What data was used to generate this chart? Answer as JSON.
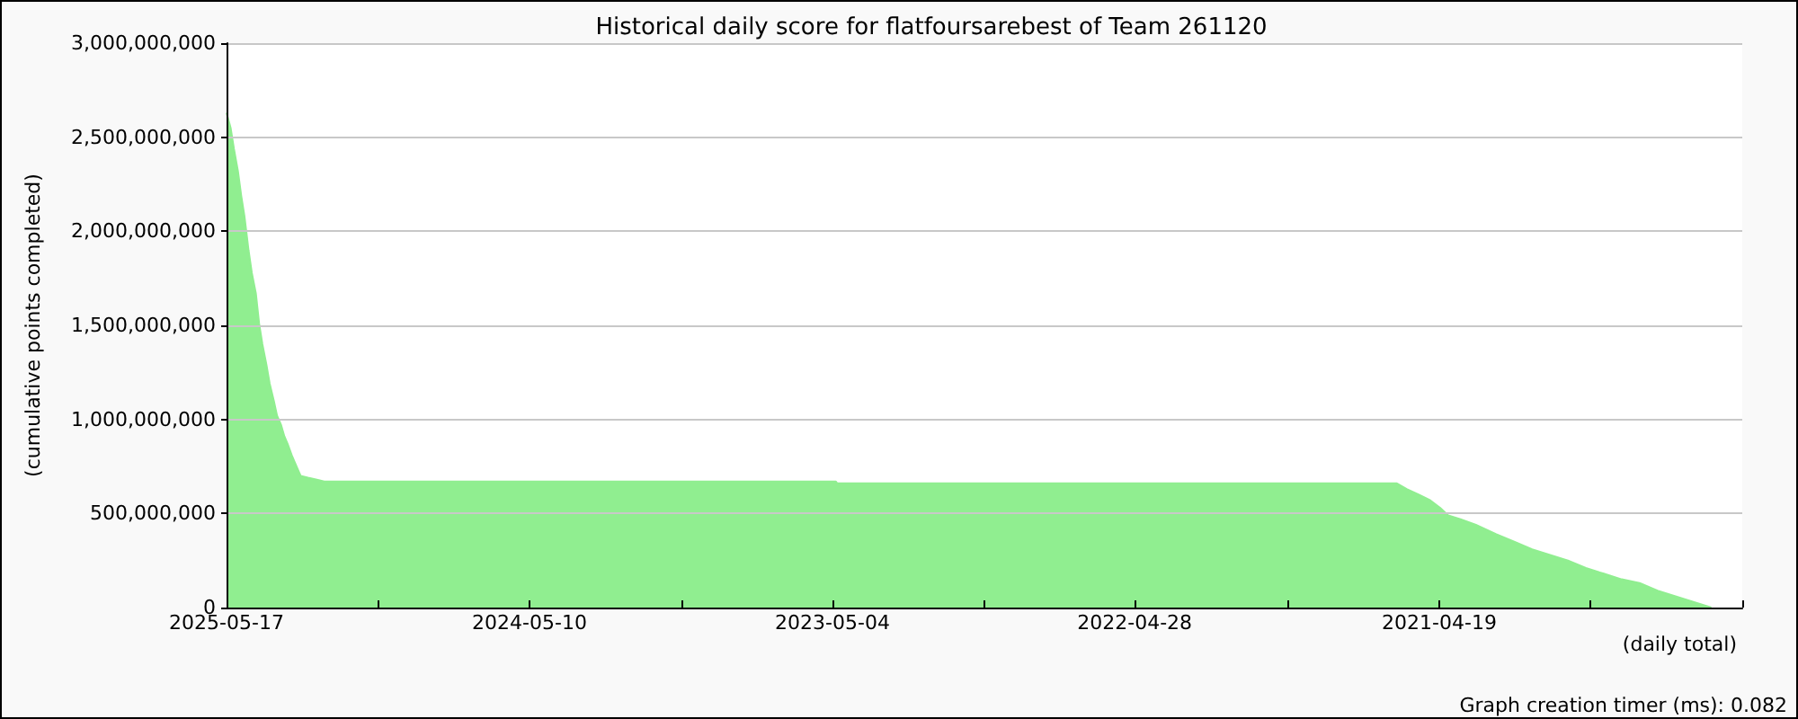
{
  "chart_data": {
    "type": "area",
    "title": "Historical daily score for flatfoursarebest of Team 261120",
    "xlabel": "(daily total)",
    "ylabel": "(cumulative points completed)",
    "annotations": [
      "Graph creation timer (ms): 0.082"
    ],
    "x": [
      "2025-05-17",
      "2025-05-12",
      "2025-05-08",
      "2025-05-03",
      "2025-04-29",
      "2025-04-25",
      "2025-04-20",
      "2025-04-16",
      "2025-04-11",
      "2025-04-07",
      "2025-04-03",
      "2025-03-29",
      "2025-03-25",
      "2025-03-20",
      "2025-03-16",
      "2025-03-11",
      "2025-03-07",
      "2025-03-03",
      "2025-02-26",
      "2025-02-22",
      "2025-02-17",
      "2025-02-15",
      "2025-02-06",
      "2025-01-26",
      "2025-01-17",
      "2023-04-30",
      "2023-04-28",
      "2021-06-10",
      "2021-05-29",
      "2021-05-14",
      "2021-04-30",
      "2021-04-18",
      "2021-04-08",
      "2021-03-24",
      "2021-03-05",
      "2021-02-08",
      "2021-01-17",
      "2020-12-26",
      "2020-12-04",
      "2020-11-12",
      "2020-10-21",
      "2020-09-29",
      "2020-09-07",
      "2020-08-16",
      "2020-07-25",
      "2020-07-03",
      "2020-06-11",
      "2020-05-20"
    ],
    "values": [
      2630000000,
      2550000000,
      2440000000,
      2320000000,
      2190000000,
      2080000000,
      1900000000,
      1780000000,
      1670000000,
      1510000000,
      1400000000,
      1290000000,
      1190000000,
      1100000000,
      1020000000,
      970000000,
      910000000,
      870000000,
      810000000,
      770000000,
      720000000,
      700000000,
      690000000,
      680000000,
      670000000,
      670000000,
      660000000,
      660000000,
      630000000,
      600000000,
      570000000,
      530000000,
      490000000,
      470000000,
      440000000,
      390000000,
      350000000,
      310000000,
      280000000,
      250000000,
      210000000,
      180000000,
      150000000,
      130000000,
      90000000,
      60000000,
      30000000,
      0
    ],
    "color": "#90ee90",
    "xlim": [
      "2025-05-17",
      "2020-04-12"
    ],
    "xticks": [
      "2025-05-17",
      {
        "value": "2024-11-12",
        "label": null
      },
      "2024-05-10",
      {
        "value": "2023-11-06",
        "label": null
      },
      "2023-05-04",
      {
        "value": "2022-10-30",
        "label": null
      },
      "2022-04-28",
      {
        "value": "2021-10-22",
        "label": null
      },
      "2021-04-19",
      {
        "value": "2020-10-15",
        "label": null
      },
      {
        "value": "2020-04-12",
        "label": null
      }
    ],
    "ylim": [
      0,
      3000000000
    ],
    "yticks": [
      0,
      {
        "value": 500000000,
        "label": "500,000,000"
      },
      {
        "value": 1000000000,
        "label": "1,000,000,000"
      },
      {
        "value": 1500000000,
        "label": "1,500,000,000"
      },
      {
        "value": 2000000000,
        "label": "2,000,000,000"
      },
      {
        "value": 2500000000,
        "label": "2,500,000,000"
      },
      {
        "value": 3000000000,
        "label": "3,000,000,000"
      }
    ],
    "grid": "y"
  }
}
